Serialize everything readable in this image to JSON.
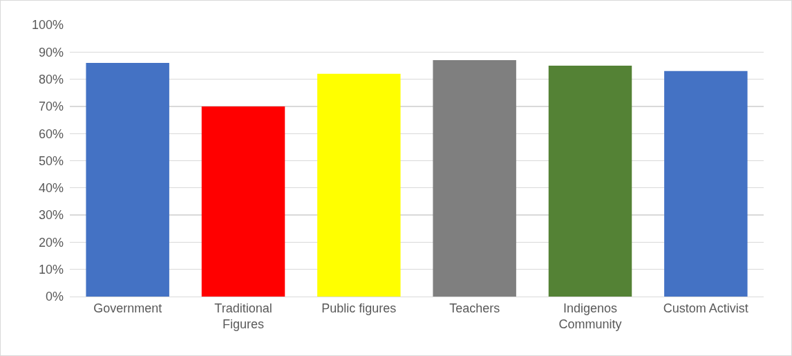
{
  "chart_data": {
    "type": "bar",
    "categories": [
      "Government",
      "Traditional Figures",
      "Public figures",
      "Teachers",
      "Indigenos Community",
      "Custom Activist"
    ],
    "values": [
      86,
      70,
      82,
      87,
      85,
      83
    ],
    "colors": [
      "#4472c4",
      "#ff0000",
      "#ffff00",
      "#7f7f7f",
      "#548235",
      "#4472c4"
    ],
    "ylim": [
      0,
      100
    ],
    "yticks": [
      {
        "value": 0,
        "label": "0%"
      },
      {
        "value": 10,
        "label": "10%"
      },
      {
        "value": 20,
        "label": "20%"
      },
      {
        "value": 30,
        "label": "30%"
      },
      {
        "value": 40,
        "label": "40%"
      },
      {
        "value": 50,
        "label": "50%"
      },
      {
        "value": 60,
        "label": "60%"
      },
      {
        "value": 70,
        "label": "70%"
      },
      {
        "value": 80,
        "label": "80%"
      },
      {
        "value": 90,
        "label": "90%"
      },
      {
        "value": 100,
        "label": "100%"
      }
    ],
    "grid": "y"
  }
}
